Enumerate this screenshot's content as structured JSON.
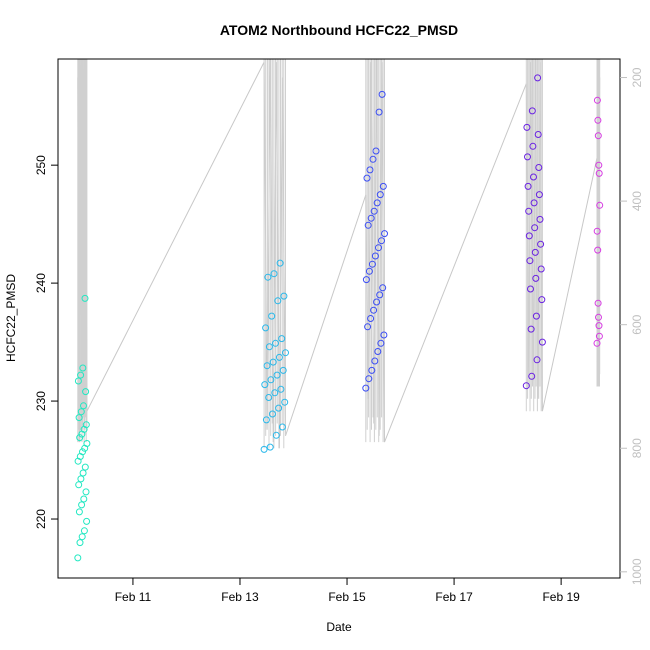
{
  "chart_data": {
    "type": "scatter",
    "title": "ATOM2 Northbound HCFC22_PMSD",
    "xlabel": "Date",
    "ylabel": "HCFC22_PMSD",
    "x_ticks": [
      "Feb 11",
      "Feb 13",
      "Feb 15",
      "Feb 17",
      "Feb 19"
    ],
    "x_tick_days": [
      11,
      13,
      15,
      17,
      19
    ],
    "xlim_days": [
      9.6,
      20.1
    ],
    "ylim": [
      215,
      259
    ],
    "y_ticks": [
      220,
      230,
      240,
      250
    ],
    "y2_ticks": [
      200,
      400,
      600,
      800,
      1000
    ],
    "y2_lim": [
      1010,
      170
    ],
    "grid": false,
    "point_style": "open-circle",
    "color_scale": "cyan-to-blue-to-magenta by date",
    "flights": [
      {
        "date_day": 10.1,
        "color": "#22e8c2",
        "x_range": [
          9.97,
          10.14
        ],
        "y_values": [
          216.7,
          218.0,
          218.5,
          219.0,
          219.8,
          220.6,
          221.2,
          221.7,
          222.3,
          222.9,
          223.4,
          223.9,
          224.4,
          224.9,
          225.3,
          225.7,
          226.0,
          226.4,
          226.9,
          227.2,
          227.6,
          228.0,
          228.6,
          229.1,
          229.6,
          230.8,
          231.7,
          232.2,
          232.8,
          238.7
        ],
        "altitude_trace": [
          200,
          790,
          180,
          770,
          160,
          760,
          180,
          740
        ]
      },
      {
        "date_day": 13.6,
        "color": "#2ab8ea",
        "x_range": [
          13.45,
          13.85
        ],
        "y_values": [
          225.9,
          226.1,
          227.1,
          227.8,
          228.4,
          228.9,
          229.4,
          229.9,
          230.3,
          230.7,
          231.0,
          231.4,
          231.8,
          232.2,
          232.6,
          233.0,
          233.3,
          233.7,
          234.1,
          234.6,
          234.9,
          235.3,
          236.2,
          237.2,
          238.5,
          238.9,
          240.5,
          240.8,
          241.7
        ],
        "altitude_trace": [
          175,
          770,
          160,
          790,
          175,
          800,
          200,
          780
        ]
      },
      {
        "date_day": 15.5,
        "color": "#3b4ef5",
        "x_range": [
          15.35,
          15.7
        ],
        "y_values": [
          231.1,
          231.9,
          232.6,
          233.4,
          234.2,
          234.9,
          235.6,
          236.3,
          237.0,
          237.7,
          238.4,
          239.0,
          239.6,
          240.3,
          241.0,
          241.6,
          242.3,
          243.0,
          243.6,
          244.2,
          244.9,
          245.5,
          246.1,
          246.8,
          247.5,
          248.2,
          248.9,
          249.6,
          250.5,
          251.2,
          254.5,
          256.0
        ],
        "altitude_trace": [
          390,
          720,
          175,
          760,
          165,
          780,
          175,
          790
        ]
      },
      {
        "date_day": 18.5,
        "color": "#6a22e2",
        "x_range": [
          18.35,
          18.65
        ],
        "y_values": [
          231.3,
          232.1,
          233.5,
          235.0,
          236.1,
          237.2,
          238.6,
          239.5,
          240.4,
          241.2,
          241.9,
          242.6,
          243.3,
          244.0,
          244.7,
          245.4,
          246.1,
          246.8,
          247.5,
          248.2,
          249.0,
          249.8,
          250.7,
          251.6,
          252.6,
          253.2,
          254.6,
          257.4
        ],
        "altitude_trace": [
          210,
          680,
          175,
          690,
          165,
          720,
          175,
          740
        ]
      },
      {
        "date_day": 19.7,
        "color": "#d63ce2",
        "x_range": [
          19.67,
          19.72
        ],
        "y_values": [
          234.9,
          235.5,
          236.4,
          237.1,
          238.3,
          242.8,
          244.4,
          246.6,
          249.3,
          250.0,
          252.5,
          253.8,
          255.5
        ],
        "altitude_trace": [
          330,
          700,
          200
        ]
      }
    ]
  }
}
